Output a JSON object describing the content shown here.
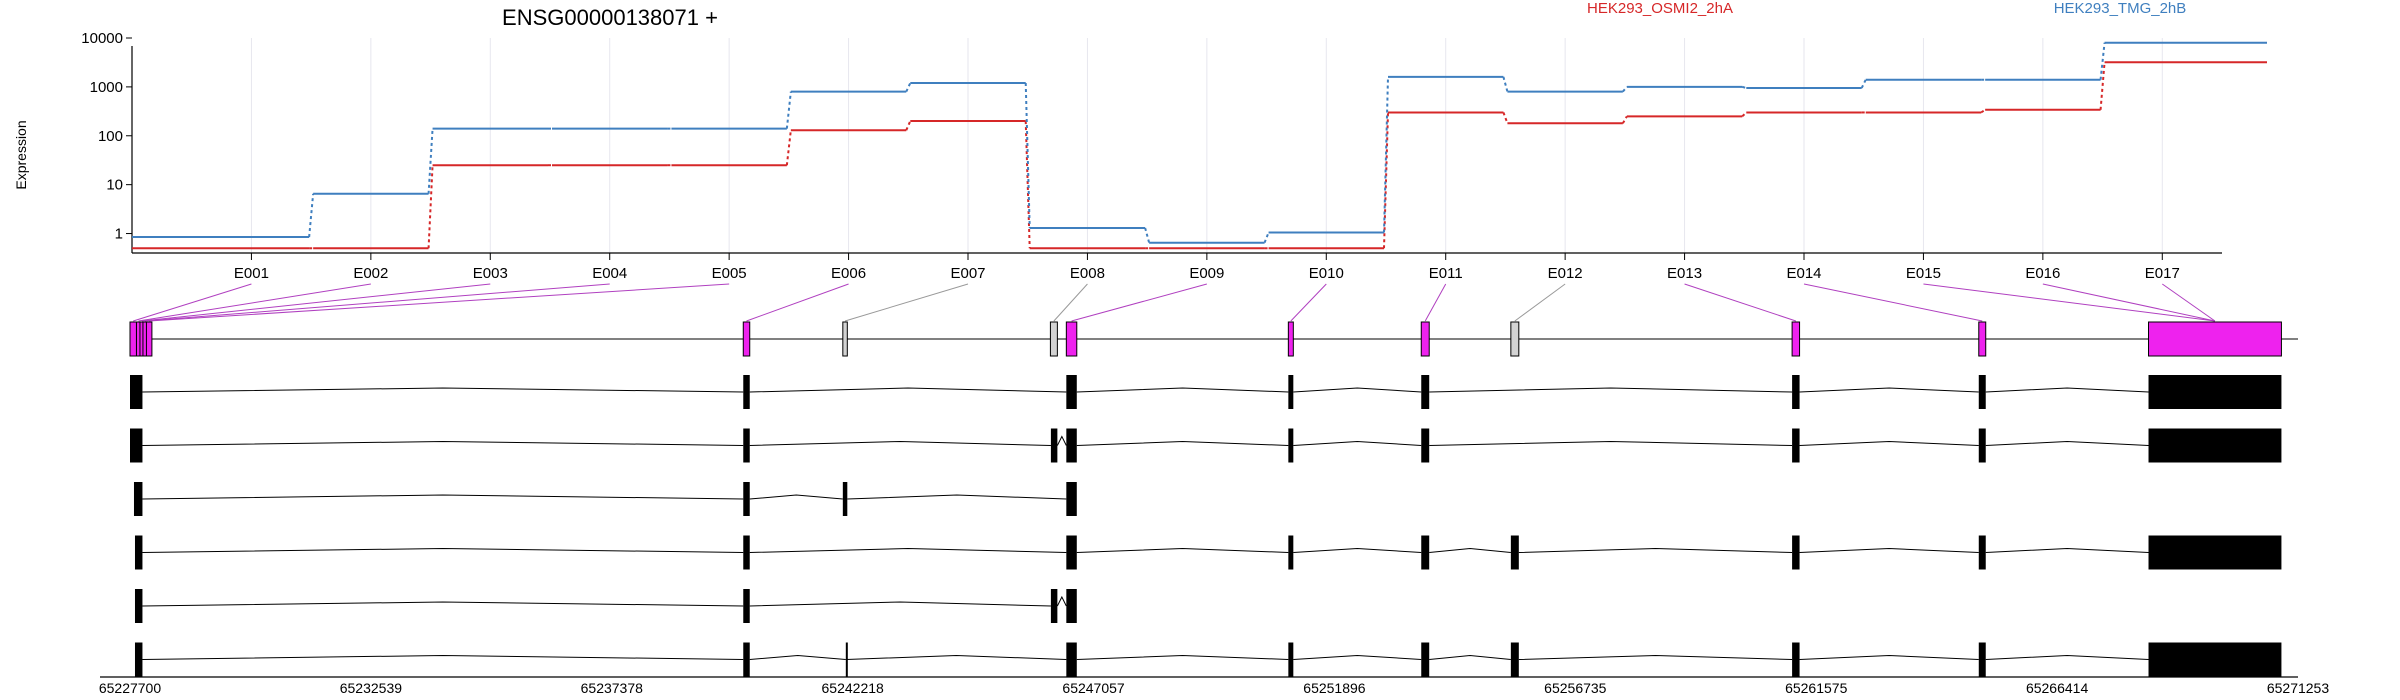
{
  "chart_data": {
    "type": "line",
    "title": "ENSG00000138071 +",
    "ylabel": "Expression",
    "xlabel": "",
    "y_scale": "log",
    "ylim": [
      0.4,
      10000
    ],
    "y_ticks": [
      1,
      10,
      100,
      1000,
      10000
    ],
    "y_tick_labels": [
      "1",
      "10",
      "100",
      "1000",
      "10000"
    ],
    "grid": "vertical",
    "legend": "top",
    "categories": [
      "E001",
      "E002",
      "E003",
      "E004",
      "E005",
      "E006",
      "E007",
      "E008",
      "E009",
      "E010",
      "E011",
      "E012",
      "E013",
      "E014",
      "E015",
      "E016",
      "E017"
    ],
    "series": [
      {
        "name": "HEK293_OSMI2_2hA",
        "color": "#d62728",
        "values": [
          0.5,
          0.5,
          25,
          25,
          25,
          130,
          200,
          0.5,
          0.5,
          0.5,
          300,
          180,
          250,
          300,
          300,
          340,
          3200
        ]
      },
      {
        "name": "HEK293_TMG_2hB",
        "color": "#3f7fbf",
        "values": [
          0.85,
          6.5,
          140,
          140,
          140,
          800,
          1200,
          1.3,
          0.65,
          1.05,
          1600,
          800,
          1000,
          950,
          1400,
          1400,
          8000
        ]
      }
    ],
    "genomic_axis": {
      "range": [
        65227700,
        65271253
      ],
      "tick_labels": [
        "65227700",
        "65232539",
        "65237378",
        "65242218",
        "65247057",
        "65251896",
        "65256735",
        "65261575",
        "65266414",
        "65271253"
      ]
    },
    "exons": [
      {
        "id": "E001",
        "start": 65227700,
        "end": 65227830,
        "highlight": true
      },
      {
        "id": "E002",
        "start": 65227830,
        "end": 65227900,
        "highlight": true
      },
      {
        "id": "E003",
        "start": 65227900,
        "end": 65227960,
        "highlight": true
      },
      {
        "id": "E004",
        "start": 65227960,
        "end": 65228030,
        "highlight": true
      },
      {
        "id": "E005",
        "start": 65228030,
        "end": 65228140,
        "highlight": true
      },
      {
        "id": "E006",
        "start": 65240020,
        "end": 65240150,
        "highlight": true
      },
      {
        "id": "E007",
        "start": 65242020,
        "end": 65242110,
        "highlight": false
      },
      {
        "id": "E008",
        "start": 65246190,
        "end": 65246330,
        "highlight": false
      },
      {
        "id": "E009",
        "start": 65246510,
        "end": 65246720,
        "highlight": true
      },
      {
        "id": "E010",
        "start": 65250970,
        "end": 65251070,
        "highlight": true
      },
      {
        "id": "E011",
        "start": 65253640,
        "end": 65253800,
        "highlight": true
      },
      {
        "id": "E012",
        "start": 65255440,
        "end": 65255600,
        "highlight": false
      },
      {
        "id": "E013",
        "start": 65261090,
        "end": 65261240,
        "highlight": true
      },
      {
        "id": "E014",
        "start": 65264840,
        "end": 65264980,
        "highlight": true
      },
      {
        "id": "E015",
        "start": 65268250,
        "end": 65270920,
        "highlight": true
      },
      {
        "id": "E016",
        "start": 65268250,
        "end": 65270920,
        "highlight": true
      },
      {
        "id": "E017",
        "start": 65268250,
        "end": 65270920,
        "highlight": true
      }
    ],
    "transcripts": [
      {
        "exons": [
          [
            65227700,
            65227950
          ],
          [
            65240020,
            65240150
          ],
          [
            65246510,
            65246720
          ],
          [
            65250970,
            65251070
          ],
          [
            65253640,
            65253800
          ],
          [
            65261090,
            65261240
          ],
          [
            65264840,
            65264980
          ],
          [
            65268250,
            65270920
          ]
        ]
      },
      {
        "exons": [
          [
            65227700,
            65227950
          ],
          [
            65240020,
            65240150
          ],
          [
            65246200,
            65246330
          ],
          [
            65246510,
            65246720
          ],
          [
            65250970,
            65251070
          ],
          [
            65253640,
            65253800
          ],
          [
            65261090,
            65261240
          ],
          [
            65264840,
            65264980
          ],
          [
            65268250,
            65270920
          ]
        ]
      },
      {
        "exons": [
          [
            65227780,
            65227950
          ],
          [
            65240020,
            65240150
          ],
          [
            65242020,
            65242110
          ],
          [
            65246510,
            65246720
          ]
        ]
      },
      {
        "exons": [
          [
            65227800,
            65227950
          ],
          [
            65240020,
            65240150
          ],
          [
            65246510,
            65246720
          ],
          [
            65250970,
            65251070
          ],
          [
            65253640,
            65253800
          ],
          [
            65255440,
            65255600
          ],
          [
            65261090,
            65261240
          ],
          [
            65264840,
            65264980
          ],
          [
            65268250,
            65270920
          ]
        ]
      },
      {
        "exons": [
          [
            65227800,
            65227950
          ],
          [
            65240020,
            65240150
          ],
          [
            65246200,
            65246330
          ],
          [
            65246510,
            65246720
          ]
        ]
      },
      {
        "exons": [
          [
            65227800,
            65227950
          ],
          [
            65240020,
            65240150
          ],
          [
            65242080,
            65242090
          ],
          [
            65246510,
            65246720
          ],
          [
            65250970,
            65251070
          ],
          [
            65253640,
            65253800
          ],
          [
            65255440,
            65255600
          ],
          [
            65261090,
            65261240
          ],
          [
            65264840,
            65264980
          ],
          [
            65268250,
            65270920
          ]
        ]
      }
    ]
  }
}
